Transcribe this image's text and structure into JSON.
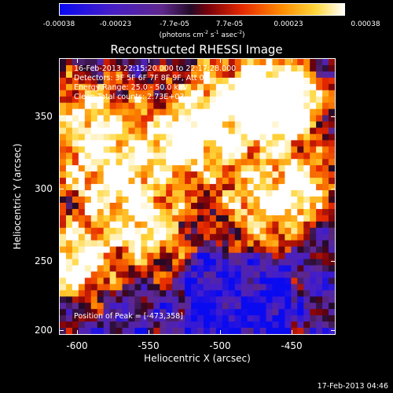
{
  "colorbar": {
    "labels": [
      "-0.00038",
      "-0.00023",
      "-7.7e-05",
      "7.7e-05",
      "0.00023",
      "0.00038"
    ],
    "units_prefix": "(photons cm",
    "units_exp1": "-2",
    "units_mid": " s",
    "units_exp2": "-1",
    "units_mid2": " asec",
    "units_exp3": "-2",
    "units_suffix": ")",
    "min": -0.00038,
    "max": 0.00038
  },
  "title": "Reconstructed RHESSI Image",
  "annotations": {
    "time_range": "16-Feb-2013 22:15:20.000 to 22:17:28.000",
    "detectors": "Detectors: 3F 5F 6F 7F 8F 9F, Att 0",
    "energy": "Energy Range: 25.0 - 50.0 keV",
    "clean": "Clean    Total counts: 2.73E+03",
    "peak": "Position of Peak = [-473,358]"
  },
  "axes": {
    "xlabel": "Heliocentric X (arcsec)",
    "ylabel": "Heliocentric Y (arcsec)",
    "xticks": [
      "-600",
      "-550",
      "-500",
      "-450"
    ],
    "yticks": [
      "350",
      "300",
      "250",
      "200"
    ]
  },
  "timestamp": "17-Feb-2013 04:46",
  "chart_data": {
    "type": "heatmap",
    "title": "Reconstructed RHESSI Image",
    "xlabel": "Heliocentric X (arcsec)",
    "ylabel": "Heliocentric Y (arcsec)",
    "xlim": [
      -613,
      -423
    ],
    "ylim": [
      197,
      387
    ],
    "xticks": [
      -600,
      -550,
      -500,
      -450
    ],
    "yticks": [
      200,
      250,
      300,
      350
    ],
    "colorbar_range": [
      -0.00038,
      0.00038
    ],
    "colormap": "blue-purple-red-orange-yellow-white",
    "peak_position": [
      -473,
      358
    ]
  }
}
